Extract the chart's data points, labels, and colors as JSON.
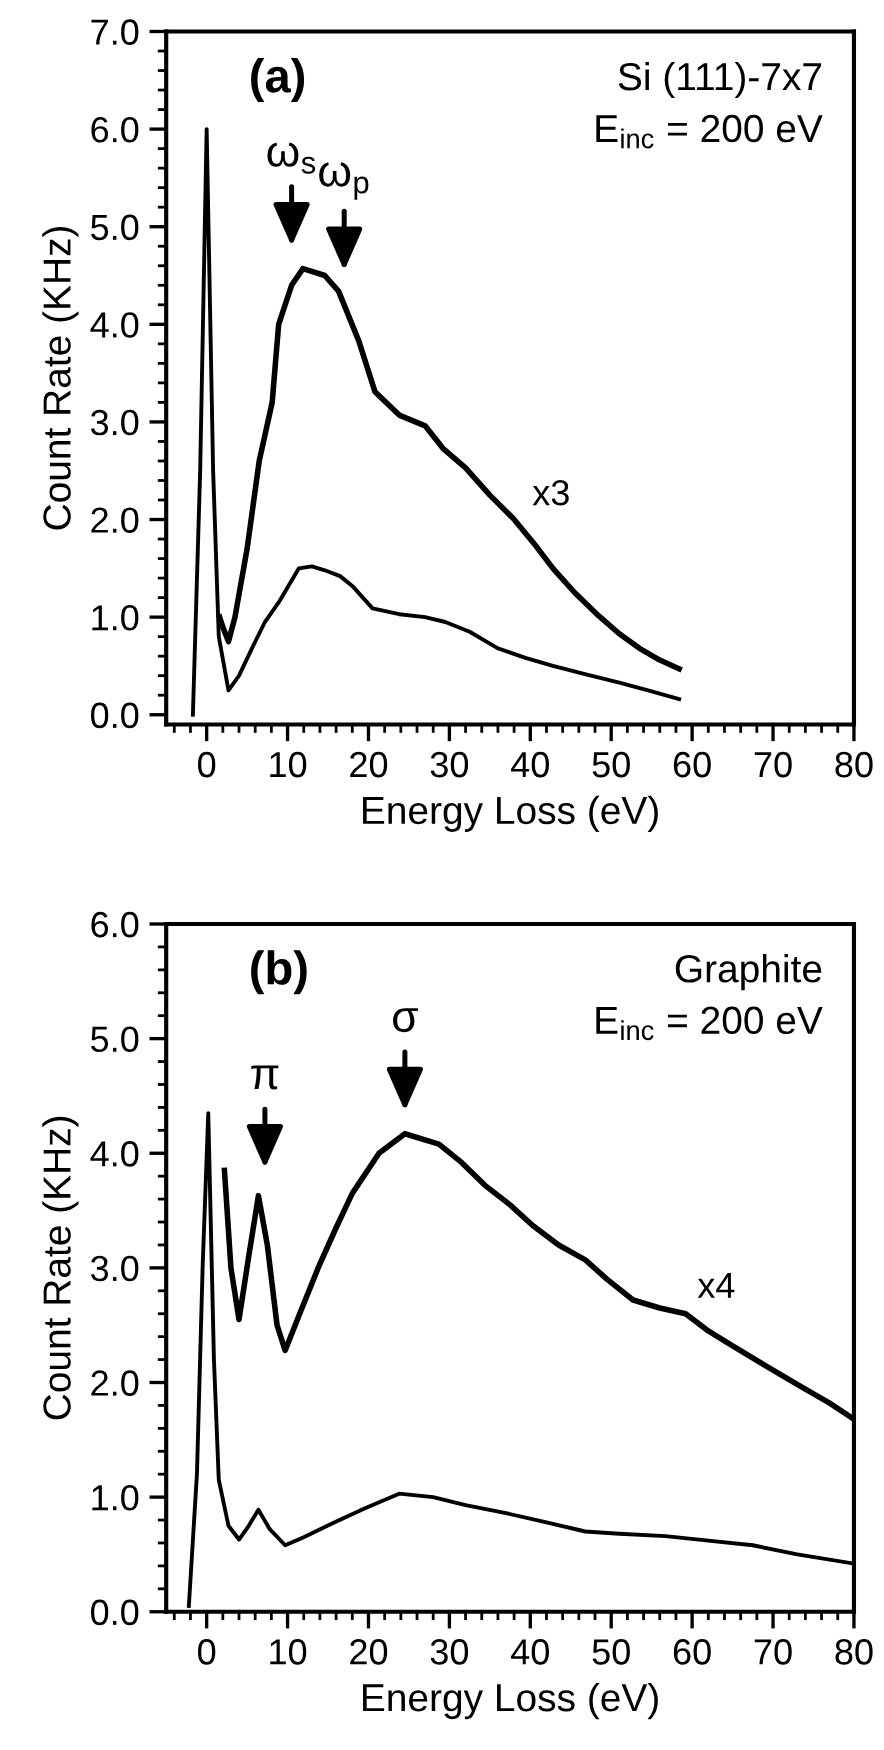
{
  "chart_data": [
    {
      "type": "line",
      "xlabel": "Energy Loss (eV)",
      "ylabel": "Count Rate (KHz)",
      "xlim": [
        -5,
        80
      ],
      "ylim": [
        -0.1,
        7.0
      ],
      "xticks": [
        0,
        10,
        20,
        30,
        40,
        50,
        60,
        70,
        80,
        {
          "value": -4,
          "label": null
        },
        {
          "value": -2,
          "label": null
        },
        {
          "value": 2,
          "label": null
        },
        {
          "value": 4,
          "label": null
        },
        {
          "value": 6,
          "label": null
        },
        {
          "value": 8,
          "label": null
        },
        {
          "value": 12,
          "label": null
        },
        {
          "value": 14,
          "label": null
        },
        {
          "value": 16,
          "label": null
        },
        {
          "value": 18,
          "label": null
        },
        {
          "value": 22,
          "label": null
        },
        {
          "value": 24,
          "label": null
        },
        {
          "value": 26,
          "label": null
        },
        {
          "value": 28,
          "label": null
        },
        {
          "value": 32,
          "label": null
        },
        {
          "value": 34,
          "label": null
        },
        {
          "value": 36,
          "label": null
        },
        {
          "value": 38,
          "label": null
        },
        {
          "value": 42,
          "label": null
        },
        {
          "value": 44,
          "label": null
        },
        {
          "value": 46,
          "label": null
        },
        {
          "value": 48,
          "label": null
        },
        {
          "value": 52,
          "label": null
        },
        {
          "value": 54,
          "label": null
        },
        {
          "value": 56,
          "label": null
        },
        {
          "value": 58,
          "label": null
        },
        {
          "value": 62,
          "label": null
        },
        {
          "value": 64,
          "label": null
        },
        {
          "value": 66,
          "label": null
        },
        {
          "value": 68,
          "label": null
        },
        {
          "value": 72,
          "label": null
        },
        {
          "value": 74,
          "label": null
        },
        {
          "value": 76,
          "label": null
        },
        {
          "value": 78,
          "label": null
        }
      ],
      "yticks": [
        {
          "value": 0,
          "label": "0.0"
        },
        {
          "value": 1,
          "label": "1.0"
        },
        {
          "value": 2,
          "label": "2.0"
        },
        {
          "value": 3,
          "label": "3.0"
        },
        {
          "value": 4,
          "label": "4.0"
        },
        {
          "value": 5,
          "label": "5.0"
        },
        {
          "value": 6,
          "label": "6.0"
        },
        {
          "value": 7,
          "label": "7.0"
        },
        {
          "value": 0.2,
          "label": null
        },
        {
          "value": 0.4,
          "label": null
        },
        {
          "value": 0.6,
          "label": null
        },
        {
          "value": 0.8,
          "label": null
        },
        {
          "value": 1.2,
          "label": null
        },
        {
          "value": 1.4,
          "label": null
        },
        {
          "value": 1.6,
          "label": null
        },
        {
          "value": 1.8,
          "label": null
        },
        {
          "value": 2.2,
          "label": null
        },
        {
          "value": 2.4,
          "label": null
        },
        {
          "value": 2.6,
          "label": null
        },
        {
          "value": 2.8,
          "label": null
        },
        {
          "value": 3.2,
          "label": null
        },
        {
          "value": 3.4,
          "label": null
        },
        {
          "value": 3.6,
          "label": null
        },
        {
          "value": 3.8,
          "label": null
        },
        {
          "value": 4.2,
          "label": null
        },
        {
          "value": 4.4,
          "label": null
        },
        {
          "value": 4.6,
          "label": null
        },
        {
          "value": 4.8,
          "label": null
        },
        {
          "value": 5.2,
          "label": null
        },
        {
          "value": 5.4,
          "label": null
        },
        {
          "value": 5.6,
          "label": null
        },
        {
          "value": 5.8,
          "label": null
        },
        {
          "value": 6.2,
          "label": null
        },
        {
          "value": 6.4,
          "label": null
        },
        {
          "value": 6.6,
          "label": null
        },
        {
          "value": 6.8,
          "label": null
        }
      ],
      "grid": false,
      "legend": false,
      "series": [
        {
          "color": "#000000",
          "x": [
            -1.7,
            -0.8,
            0,
            0.8,
            1.5,
            2.7,
            4,
            5.6,
            7.2,
            8.9,
            11.4,
            13,
            14.6,
            16.5,
            18,
            20.5,
            23.8,
            27,
            29.5,
            32.5,
            36,
            39.5,
            42.8,
            47,
            51,
            55,
            58.4
          ],
          "values": [
            0,
            2.5,
            6.0,
            2.5,
            0.8,
            0.25,
            0.4,
            0.68,
            0.95,
            1.15,
            1.5,
            1.52,
            1.48,
            1.42,
            1.32,
            1.09,
            1.03,
            1.0,
            0.95,
            0.85,
            0.68,
            0.58,
            0.5,
            0.41,
            0.33,
            0.24,
            0.16
          ]
        },
        {
          "color": "#000000",
          "x": [
            1.6,
            2.0,
            2.7,
            3.5,
            5,
            6.5,
            8.1,
            8.9,
            10.5,
            11.9,
            14.6,
            16.3,
            18.8,
            20.8,
            23.8,
            27,
            29.2,
            32,
            35,
            37.9,
            40.5,
            42.8,
            45.5,
            48.5,
            51,
            53.5,
            56,
            58.4
          ],
          "values": [
            1.0,
            0.9,
            0.75,
            1.0,
            1.7,
            2.6,
            3.2,
            4.0,
            4.4,
            4.57,
            4.5,
            4.34,
            3.83,
            3.31,
            3.07,
            2.96,
            2.73,
            2.53,
            2.25,
            2.01,
            1.75,
            1.5,
            1.25,
            1.01,
            0.83,
            0.68,
            0.56,
            0.47
          ]
        }
      ],
      "annotations": [
        "(a)",
        "Si (111)-7x7",
        "E$_{inc}$ = 200 eV",
        {
          "text": "ω$_{s}$",
          "x": 10.5,
          "y": 4.6
        },
        {
          "text": "ω$_{p}$",
          "x": 17,
          "y": 4.35
        },
        "x3"
      ]
    },
    {
      "type": "line",
      "xlabel": "Energy Loss (eV)",
      "ylabel": "Count Rate (KHz)",
      "xlim": [
        -5,
        80
      ],
      "ylim": [
        0,
        6.0
      ],
      "xticks": [
        0,
        10,
        20,
        30,
        40,
        50,
        60,
        70,
        80,
        {
          "value": -4,
          "label": null
        },
        {
          "value": -2,
          "label": null
        },
        {
          "value": 2,
          "label": null
        },
        {
          "value": 4,
          "label": null
        },
        {
          "value": 6,
          "label": null
        },
        {
          "value": 8,
          "label": null
        },
        {
          "value": 12,
          "label": null
        },
        {
          "value": 14,
          "label": null
        },
        {
          "value": 16,
          "label": null
        },
        {
          "value": 18,
          "label": null
        },
        {
          "value": 22,
          "label": null
        },
        {
          "value": 24,
          "label": null
        },
        {
          "value": 26,
          "label": null
        },
        {
          "value": 28,
          "label": null
        },
        {
          "value": 32,
          "label": null
        },
        {
          "value": 34,
          "label": null
        },
        {
          "value": 36,
          "label": null
        },
        {
          "value": 38,
          "label": null
        },
        {
          "value": 42,
          "label": null
        },
        {
          "value": 44,
          "label": null
        },
        {
          "value": 46,
          "label": null
        },
        {
          "value": 48,
          "label": null
        },
        {
          "value": 52,
          "label": null
        },
        {
          "value": 54,
          "label": null
        },
        {
          "value": 56,
          "label": null
        },
        {
          "value": 58,
          "label": null
        },
        {
          "value": 62,
          "label": null
        },
        {
          "value": 64,
          "label": null
        },
        {
          "value": 66,
          "label": null
        },
        {
          "value": 68,
          "label": null
        },
        {
          "value": 72,
          "label": null
        },
        {
          "value": 74,
          "label": null
        },
        {
          "value": 76,
          "label": null
        },
        {
          "value": 78,
          "label": null
        }
      ],
      "yticks": [
        {
          "value": 0,
          "label": "0.0"
        },
        {
          "value": 1,
          "label": "1.0"
        },
        {
          "value": 2,
          "label": "2.0"
        },
        {
          "value": 3,
          "label": "3.0"
        },
        {
          "value": 4,
          "label": "4.0"
        },
        {
          "value": 5,
          "label": "5.0"
        },
        {
          "value": 6,
          "label": "6.0"
        },
        {
          "value": 0.2,
          "label": null
        },
        {
          "value": 0.4,
          "label": null
        },
        {
          "value": 0.6,
          "label": null
        },
        {
          "value": 0.8,
          "label": null
        },
        {
          "value": 1.2,
          "label": null
        },
        {
          "value": 1.4,
          "label": null
        },
        {
          "value": 1.6,
          "label": null
        },
        {
          "value": 1.8,
          "label": null
        },
        {
          "value": 2.2,
          "label": null
        },
        {
          "value": 2.4,
          "label": null
        },
        {
          "value": 2.6,
          "label": null
        },
        {
          "value": 2.8,
          "label": null
        },
        {
          "value": 3.2,
          "label": null
        },
        {
          "value": 3.4,
          "label": null
        },
        {
          "value": 3.6,
          "label": null
        },
        {
          "value": 3.8,
          "label": null
        },
        {
          "value": 4.2,
          "label": null
        },
        {
          "value": 4.4,
          "label": null
        },
        {
          "value": 4.6,
          "label": null
        },
        {
          "value": 4.8,
          "label": null
        },
        {
          "value": 5.2,
          "label": null
        },
        {
          "value": 5.4,
          "label": null
        },
        {
          "value": 5.6,
          "label": null
        },
        {
          "value": 5.8,
          "label": null
        }
      ],
      "grid": false,
      "legend": false,
      "series": [
        {
          "color": "#000000",
          "x": [
            -2.2,
            -1.2,
            -0.5,
            0.2,
            0.9,
            1.5,
            2.7,
            4,
            5.2,
            6.4,
            7.8,
            9.7,
            12,
            15.5,
            19.5,
            23.8,
            28,
            32,
            37,
            42,
            46.8,
            51,
            56.7,
            62,
            67.5,
            73,
            80
          ],
          "values": [
            0.05,
            1.2,
            3.0,
            4.35,
            2.2,
            1.15,
            0.75,
            0.63,
            0.75,
            0.89,
            0.72,
            0.58,
            0.65,
            0.77,
            0.9,
            1.03,
            1.0,
            0.93,
            0.86,
            0.78,
            0.7,
            0.68,
            0.66,
            0.62,
            0.58,
            0.5,
            0.42
          ]
        },
        {
          "color": "#000000",
          "x": [
            2.2,
            3.0,
            4,
            5.2,
            6.4,
            7.5,
            8.7,
            9.7,
            11.5,
            13.9,
            16,
            18,
            21.3,
            24.5,
            28.7,
            31.5,
            34.4,
            37.5,
            40.3,
            43.5,
            46.8,
            49.5,
            52.7,
            56,
            59.2,
            62,
            65,
            69,
            73.3,
            77,
            80
          ],
          "values": [
            3.85,
            3.0,
            2.55,
            3.1,
            3.63,
            3.2,
            2.5,
            2.28,
            2.6,
            3.02,
            3.35,
            3.65,
            4.0,
            4.17,
            4.08,
            3.92,
            3.72,
            3.55,
            3.37,
            3.2,
            3.07,
            2.9,
            2.72,
            2.65,
            2.6,
            2.45,
            2.32,
            2.15,
            1.97,
            1.82,
            1.68
          ]
        }
      ],
      "annotations": [
        "(b)",
        "Graphite",
        "E$_{inc}$ = 200 eV",
        {
          "text": "π",
          "x": 7.2,
          "y": 3.7
        },
        {
          "text": "σ",
          "x": 24.5,
          "y": 4.2
        },
        "x4"
      ]
    }
  ]
}
